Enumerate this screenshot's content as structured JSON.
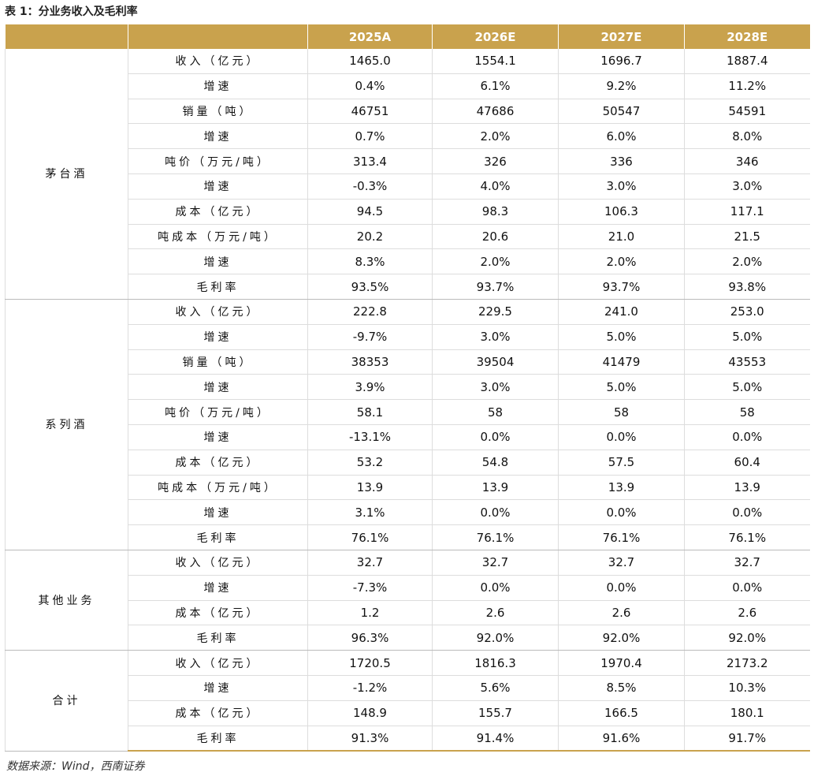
{
  "title": "表 1：分业务收入及毛利率",
  "table": {
    "columns": [
      "2025A",
      "2026E",
      "2027E",
      "2028E"
    ],
    "groups": [
      {
        "name": "茅台酒",
        "rows": [
          {
            "label": "收入（亿元）",
            "values": [
              "1465.0",
              "1554.1",
              "1696.7",
              "1887.4"
            ]
          },
          {
            "label": "增速",
            "values": [
              "0.4%",
              "6.1%",
              "9.2%",
              "11.2%"
            ]
          },
          {
            "label": "销量（吨）",
            "values": [
              "46751",
              "47686",
              "50547",
              "54591"
            ]
          },
          {
            "label": "增速",
            "values": [
              "0.7%",
              "2.0%",
              "6.0%",
              "8.0%"
            ]
          },
          {
            "label": "吨价（万元/吨）",
            "values": [
              "313.4",
              "326",
              "336",
              "346"
            ]
          },
          {
            "label": "增速",
            "values": [
              "-0.3%",
              "4.0%",
              "3.0%",
              "3.0%"
            ]
          },
          {
            "label": "成本（亿元）",
            "values": [
              "94.5",
              "98.3",
              "106.3",
              "117.1"
            ]
          },
          {
            "label": "吨成本（万元/吨）",
            "values": [
              "20.2",
              "20.6",
              "21.0",
              "21.5"
            ]
          },
          {
            "label": "增速",
            "values": [
              "8.3%",
              "2.0%",
              "2.0%",
              "2.0%"
            ]
          },
          {
            "label": "毛利率",
            "values": [
              "93.5%",
              "93.7%",
              "93.7%",
              "93.8%"
            ]
          }
        ]
      },
      {
        "name": "系列酒",
        "rows": [
          {
            "label": "收入（亿元）",
            "values": [
              "222.8",
              "229.5",
              "241.0",
              "253.0"
            ]
          },
          {
            "label": "增速",
            "values": [
              "-9.7%",
              "3.0%",
              "5.0%",
              "5.0%"
            ]
          },
          {
            "label": "销量（吨）",
            "values": [
              "38353",
              "39504",
              "41479",
              "43553"
            ]
          },
          {
            "label": "增速",
            "values": [
              "3.9%",
              "3.0%",
              "5.0%",
              "5.0%"
            ]
          },
          {
            "label": "吨价（万元/吨）",
            "values": [
              "58.1",
              "58",
              "58",
              "58"
            ]
          },
          {
            "label": "增速",
            "values": [
              "-13.1%",
              "0.0%",
              "0.0%",
              "0.0%"
            ]
          },
          {
            "label": "成本（亿元）",
            "values": [
              "53.2",
              "54.8",
              "57.5",
              "60.4"
            ]
          },
          {
            "label": "吨成本（万元/吨）",
            "values": [
              "13.9",
              "13.9",
              "13.9",
              "13.9"
            ]
          },
          {
            "label": "增速",
            "values": [
              "3.1%",
              "0.0%",
              "0.0%",
              "0.0%"
            ]
          },
          {
            "label": "毛利率",
            "values": [
              "76.1%",
              "76.1%",
              "76.1%",
              "76.1%"
            ]
          }
        ]
      },
      {
        "name": "其他业务",
        "rows": [
          {
            "label": "收入（亿元）",
            "values": [
              "32.7",
              "32.7",
              "32.7",
              "32.7"
            ]
          },
          {
            "label": "增速",
            "values": [
              "-7.3%",
              "0.0%",
              "0.0%",
              "0.0%"
            ]
          },
          {
            "label": "成本（亿元）",
            "values": [
              "1.2",
              "2.6",
              "2.6",
              "2.6"
            ]
          },
          {
            "label": "毛利率",
            "values": [
              "96.3%",
              "92.0%",
              "92.0%",
              "92.0%"
            ]
          }
        ]
      },
      {
        "name": "合计",
        "rows": [
          {
            "label": "收入（亿元）",
            "values": [
              "1720.5",
              "1816.3",
              "1970.4",
              "2173.2"
            ]
          },
          {
            "label": "增速",
            "values": [
              "-1.2%",
              "5.6%",
              "8.5%",
              "10.3%"
            ]
          },
          {
            "label": "成本（亿元）",
            "values": [
              "148.9",
              "155.7",
              "166.5",
              "180.1"
            ]
          },
          {
            "label": "毛利率",
            "values": [
              "91.3%",
              "91.4%",
              "91.6%",
              "91.7%"
            ]
          }
        ]
      }
    ]
  },
  "source": "数据来源：Wind，西南证券"
}
